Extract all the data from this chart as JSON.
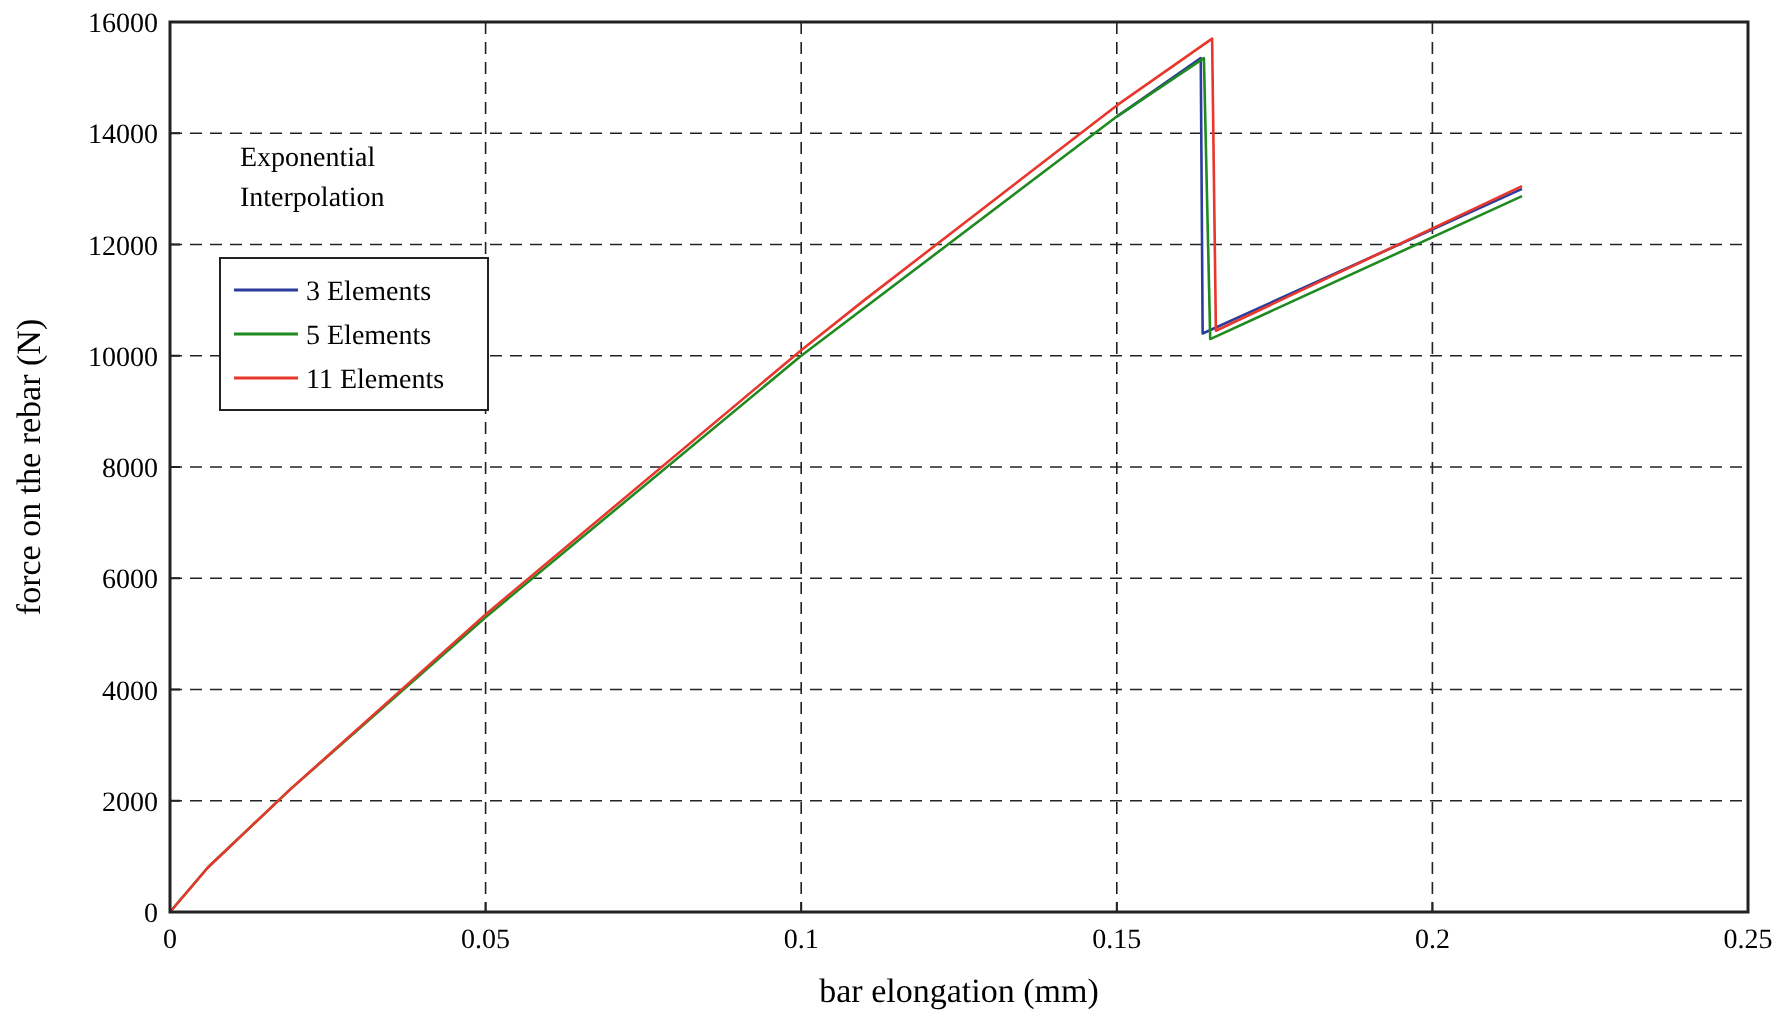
{
  "chart_data": {
    "type": "line",
    "xlabel": "bar elongation (mm)",
    "ylabel": "force on the rebar (N)",
    "legend_title": "Exponential Interpolation",
    "legend": "top left",
    "grid": true,
    "xlim": [
      0,
      0.25
    ],
    "ylim": [
      0,
      16000
    ],
    "xticks": [
      0,
      0.05,
      0.1,
      0.15,
      0.2,
      0.25
    ],
    "yticks": [
      0,
      2000,
      4000,
      6000,
      8000,
      10000,
      12000,
      14000,
      16000
    ],
    "series": [
      {
        "name": "3 Elements",
        "color": "#2b3c9c",
        "x": [
          0.15,
          0.1633,
          0.1636,
          0.2142
        ],
        "values": [
          14300,
          15350,
          10400,
          13000
        ]
      },
      {
        "name": "5 Elements",
        "color": "#1f8a1f",
        "x": [
          0,
          0.006,
          0.019,
          0.05,
          0.1,
          0.15,
          0.1638,
          0.1648,
          0.2142
        ],
        "values": [
          0,
          800,
          2200,
          5300,
          10000,
          14300,
          15350,
          10300,
          12870
        ]
      },
      {
        "name": "11 Elements",
        "color": "#e8372c",
        "x": [
          0,
          0.006,
          0.019,
          0.05,
          0.1,
          0.11,
          0.15,
          0.1651,
          0.1657,
          0.2142
        ],
        "values": [
          0,
          800,
          2200,
          5350,
          10100,
          11000,
          14500,
          15700,
          10450,
          13050
        ]
      }
    ]
  }
}
